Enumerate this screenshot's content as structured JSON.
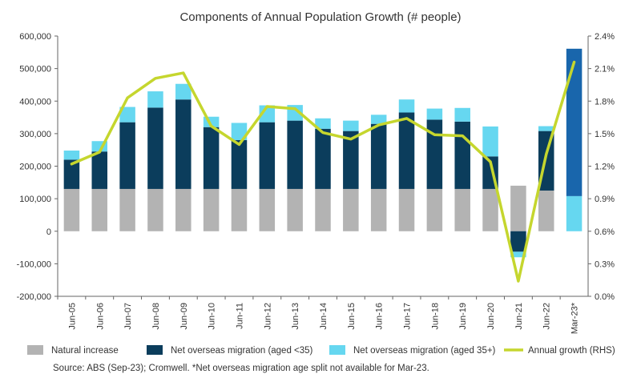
{
  "chart_data": {
    "type": "bar",
    "title": "Components of Annual Population Growth (# people)",
    "categories": [
      "Jun-05",
      "Jun-06",
      "Jun-07",
      "Jun-08",
      "Jun-09",
      "Jun-10",
      "Jun-11",
      "Jun-12",
      "Jun-13",
      "Jun-14",
      "Jun-15",
      "Jun-16",
      "Jun-17",
      "Jun-18",
      "Jun-19",
      "Jun-20",
      "Jun-21",
      "Jun-22",
      "Mar-23*"
    ],
    "left_axis": {
      "min": -200000,
      "max": 600000,
      "step": 100000,
      "tick_labels": [
        "-200,000",
        "-100,000",
        "0",
        "100,000",
        "200,000",
        "300,000",
        "400,000",
        "500,000",
        "600,000"
      ]
    },
    "right_axis": {
      "min": 0.0,
      "max": 2.4,
      "step": 0.3,
      "tick_labels": [
        "0.0%",
        "0.3%",
        "0.6%",
        "0.9%",
        "1.2%",
        "1.5%",
        "1.8%",
        "2.1%",
        "2.4%"
      ]
    },
    "series": [
      {
        "name": "Natural increase",
        "kind": "bar",
        "color": "#b3b3b3",
        "values": [
          130000,
          130000,
          130000,
          130000,
          130000,
          130000,
          130000,
          130000,
          130000,
          130000,
          130000,
          130000,
          130000,
          130000,
          130000,
          130000,
          140000,
          125000,
          null
        ]
      },
      {
        "name": "Net overseas migration (aged <35)",
        "kind": "bar",
        "color": "#0b3d5c",
        "values": [
          90000,
          115000,
          205000,
          250000,
          275000,
          190000,
          150000,
          205000,
          210000,
          185000,
          178000,
          200000,
          235000,
          213000,
          207000,
          100000,
          -63000,
          183000,
          null
        ]
      },
      {
        "name": "Net overseas migration (aged 35+)",
        "kind": "bar",
        "color": "#66d7f0",
        "values": [
          28000,
          32000,
          47000,
          50000,
          48000,
          32000,
          53000,
          52000,
          48000,
          32000,
          32000,
          28000,
          40000,
          34000,
          42000,
          92000,
          -17000,
          15000,
          null
        ]
      },
      {
        "name": "Annual growth (RHS)",
        "kind": "line",
        "color": "#c5d62e",
        "values": [
          1.22,
          1.33,
          1.83,
          2.01,
          2.06,
          1.57,
          1.4,
          1.75,
          1.73,
          1.51,
          1.45,
          1.58,
          1.64,
          1.49,
          1.48,
          1.24,
          0.14,
          1.31,
          2.16
        ]
      }
    ],
    "mar23_total": {
      "natural_increase": 108000,
      "net_overseas_migration_total": 453000,
      "color": "#1966ac"
    },
    "grid": false,
    "legend_position": "bottom"
  },
  "source_note": "Source: ABS (Sep-23); Cromwell. *Net overseas migration age split not available for Mar-23."
}
